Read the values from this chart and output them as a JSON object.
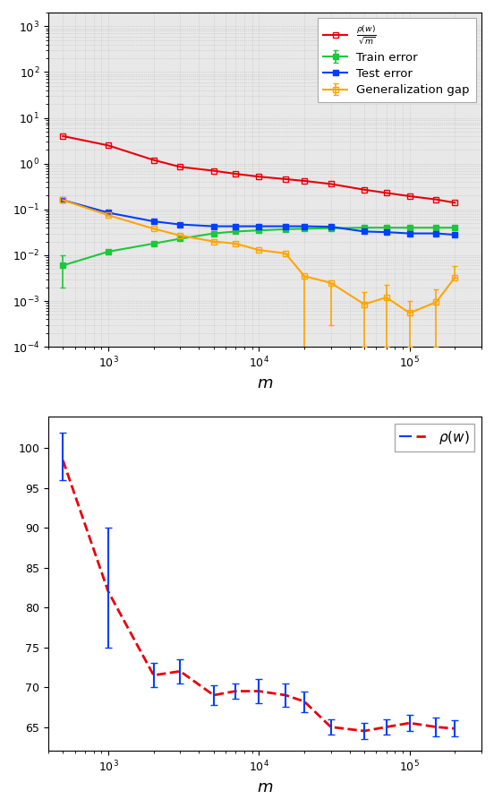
{
  "fig_width": 5.52,
  "fig_height": 9.02,
  "dpi": 100,
  "plot1": {
    "m_values": [
      500,
      1000,
      2000,
      3000,
      5000,
      7000,
      10000,
      15000,
      20000,
      30000,
      50000,
      70000,
      100000,
      150000,
      200000
    ],
    "rho_over_sqrtm": {
      "y": [
        4.0,
        2.5,
        1.2,
        0.85,
        0.7,
        0.6,
        0.52,
        0.46,
        0.42,
        0.36,
        0.27,
        0.23,
        0.195,
        0.165,
        0.14
      ],
      "yerr_lo": [
        0.0,
        0.0,
        0.0,
        0.0,
        0.0,
        0.0,
        0.0,
        0.0,
        0.0,
        0.0,
        0.0,
        0.0,
        0.0,
        0.0,
        0.0
      ],
      "yerr_hi": [
        0.0,
        0.0,
        0.0,
        0.0,
        0.0,
        0.0,
        0.0,
        0.0,
        0.0,
        0.0,
        0.0,
        0.0,
        0.0,
        0.0,
        0.0
      ],
      "color": "#e8000b",
      "marker": "s",
      "markerfacecolor": "none",
      "label": "$\\frac{\\rho(w)}{\\sqrt{m}}$"
    },
    "train_error": {
      "y": [
        0.006,
        0.012,
        0.018,
        0.023,
        0.03,
        0.033,
        0.035,
        0.037,
        0.038,
        0.039,
        0.04,
        0.04,
        0.04,
        0.04,
        0.04
      ],
      "yerr_lo": [
        0.004,
        0.0,
        0.0,
        0.0,
        0.0,
        0.0,
        0.0,
        0.0,
        0.0,
        0.0,
        0.0,
        0.0,
        0.0,
        0.0,
        0.0
      ],
      "yerr_hi": [
        0.004,
        0.0,
        0.0,
        0.0,
        0.0,
        0.0,
        0.0,
        0.0,
        0.0,
        0.0,
        0.0,
        0.0,
        0.0,
        0.0,
        0.0
      ],
      "color": "#1ac938",
      "marker": "s",
      "markerfacecolor": "#1ac938",
      "label": "Train error"
    },
    "test_error": {
      "y": [
        0.16,
        0.085,
        0.055,
        0.047,
        0.043,
        0.043,
        0.043,
        0.043,
        0.043,
        0.042,
        0.033,
        0.032,
        0.03,
        0.03,
        0.028
      ],
      "yerr_lo": [
        0.0,
        0.0,
        0.0,
        0.0,
        0.0,
        0.0,
        0.0,
        0.0,
        0.0,
        0.0,
        0.0,
        0.0,
        0.0,
        0.0,
        0.0
      ],
      "yerr_hi": [
        0.0,
        0.0,
        0.0,
        0.0,
        0.0,
        0.0,
        0.0,
        0.0,
        0.0,
        0.0,
        0.0,
        0.0,
        0.0,
        0.0,
        0.0
      ],
      "color": "#023eff",
      "marker": "s",
      "markerfacecolor": "#023eff",
      "label": "Test error"
    },
    "gen_gap": {
      "y": [
        0.16,
        0.075,
        0.038,
        0.027,
        0.02,
        0.018,
        0.013,
        0.011,
        0.0035,
        0.0025,
        0.00085,
        0.0012,
        0.00055,
        0.00095,
        0.0033
      ],
      "yerr_lo": [
        0.0,
        0.0,
        0.0,
        0.0,
        0.0,
        0.0,
        0.0,
        0.0,
        0.0035,
        0.0022,
        0.00075,
        0.0011,
        0.00045,
        0.00085,
        0.0
      ],
      "yerr_hi": [
        0.0,
        0.0,
        0.0,
        0.0,
        0.0,
        0.0,
        0.0,
        0.0,
        0.0,
        0.0,
        0.00075,
        0.0011,
        0.00045,
        0.00085,
        0.0025
      ],
      "color": "#ffa500",
      "marker": "s",
      "markerfacecolor": "none",
      "label": "Generalization gap"
    },
    "xlabel": "$m$",
    "xlim": [
      400,
      300000
    ],
    "ylim": [
      0.0001,
      2000.0
    ],
    "bg_color": "#e8e8e8"
  },
  "plot2": {
    "m_values": [
      500,
      1000,
      2000,
      3000,
      5000,
      7000,
      10000,
      15000,
      20000,
      30000,
      50000,
      70000,
      100000,
      150000,
      200000
    ],
    "rho": {
      "y": [
        98.5,
        82.0,
        71.5,
        72.0,
        69.0,
        69.5,
        69.5,
        69.0,
        68.2,
        65.0,
        64.5,
        65.0,
        65.5,
        65.0,
        64.8
      ],
      "yerr_lo": [
        2.5,
        7.0,
        1.5,
        1.5,
        1.2,
        1.0,
        1.5,
        1.5,
        1.3,
        1.0,
        1.0,
        1.0,
        1.0,
        1.2,
        1.0
      ],
      "yerr_hi": [
        3.5,
        8.0,
        1.5,
        1.5,
        1.2,
        1.0,
        1.5,
        1.5,
        1.3,
        1.0,
        1.0,
        1.0,
        1.0,
        1.2,
        1.0
      ],
      "color": "#e8000b",
      "errbar_color": "#023eff",
      "label": "$\\rho(w)$"
    },
    "xlabel": "$m$",
    "xlim": [
      400,
      300000
    ],
    "ylim": [
      62,
      104
    ],
    "bg_color": "#ffffff"
  }
}
